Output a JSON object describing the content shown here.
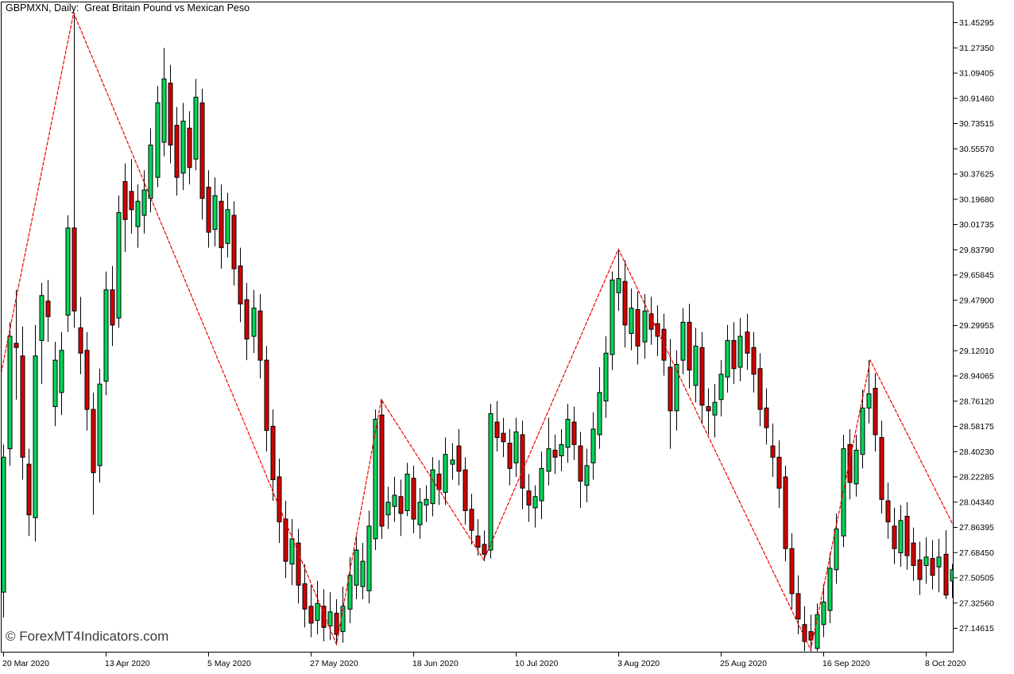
{
  "chart": {
    "title": "GBPMXN, Daily:  Great Britain Pound vs Mexican Peso",
    "watermark": "© ForexMT4Indicators.com",
    "colors": {
      "background": "#FFFFFF",
      "border": "#000000",
      "text": "#000000",
      "watermark_text": "#3A3A3A",
      "candle_up": "#00D75A",
      "candle_down": "#D40000",
      "candle_outline": "#000000",
      "wick": "#000000",
      "zigzag": "#EE0000"
    }
  },
  "chart_data": {
    "type": "candlestick",
    "symbol": "GBPMXN",
    "timeframe": "Daily",
    "title": "GBPMXN, Daily:  Great Britain Pound vs Mexican Peso",
    "indicator": "ZigZag (red line connecting swing highs and lows)",
    "y_axis": {
      "top_label_price": 31.45295,
      "label_step": 0.17945,
      "labels": [
        "31.45295",
        "31.27350",
        "31.09405",
        "30.91460",
        "30.73515",
        "30.55570",
        "30.37625",
        "30.19680",
        "30.01735",
        "29.83790",
        "29.65845",
        "29.47900",
        "29.29955",
        "29.12010",
        "28.94065",
        "28.76120",
        "28.58175",
        "28.40230",
        "28.22285",
        "28.04340",
        "27.86395",
        "27.68450",
        "27.50505",
        "27.32560",
        "27.14615"
      ]
    },
    "x_axis": {
      "labels": [
        "20 Mar 2020",
        "13 Apr 2020",
        "5 May 2020",
        "27 May 2020",
        "18 Jun 2020",
        "10 Jul 2020",
        "3 Aug 2020",
        "25 Aug 2020",
        "16 Sep 2020",
        "8 Oct 2020"
      ],
      "tick_bar_indices": [
        0,
        16,
        32,
        48,
        64,
        80,
        96,
        112,
        128,
        144
      ]
    },
    "zigzag_pivots": [
      [
        -0.5,
        28.92
      ],
      [
        11,
        31.52
      ],
      [
        52,
        27.03
      ],
      [
        59,
        28.77
      ],
      [
        75,
        27.63
      ],
      [
        96,
        29.84
      ],
      [
        126,
        26.99
      ],
      [
        135.3,
        29.05
      ],
      [
        148.3,
        27.87
      ]
    ],
    "candles_format": [
      "open",
      "high",
      "low",
      "close"
    ],
    "candles": [
      [
        27.4,
        28.45,
        27.22,
        28.36
      ],
      [
        28.42,
        29.32,
        28.3,
        29.22
      ],
      [
        29.17,
        29.55,
        28.77,
        29.14
      ],
      [
        29.08,
        29.29,
        28.2,
        28.36
      ],
      [
        28.31,
        28.42,
        27.8,
        27.95
      ],
      [
        27.93,
        29.3,
        27.76,
        29.08
      ],
      [
        29.19,
        29.6,
        28.88,
        29.51
      ],
      [
        29.47,
        29.62,
        29.18,
        29.36
      ],
      [
        28.72,
        29.18,
        28.58,
        29.05
      ],
      [
        28.82,
        29.25,
        28.66,
        29.12
      ],
      [
        29.37,
        30.08,
        29.25,
        29.99
      ],
      [
        29.99,
        31.52,
        29.28,
        29.4
      ],
      [
        29.28,
        29.5,
        28.95,
        29.1
      ],
      [
        29.12,
        29.25,
        28.55,
        28.7
      ],
      [
        28.7,
        28.82,
        27.95,
        28.25
      ],
      [
        28.3,
        28.99,
        28.18,
        28.88
      ],
      [
        28.9,
        29.68,
        28.8,
        29.55
      ],
      [
        29.55,
        29.72,
        29.15,
        29.3
      ],
      [
        29.35,
        30.22,
        29.28,
        30.1
      ],
      [
        30.32,
        30.45,
        29.82,
        30.05
      ],
      [
        30.25,
        30.48,
        29.95,
        30.12
      ],
      [
        30.0,
        30.3,
        29.85,
        30.18
      ],
      [
        30.08,
        30.4,
        29.95,
        30.26
      ],
      [
        30.2,
        30.7,
        30.1,
        30.58
      ],
      [
        30.35,
        31.0,
        30.28,
        30.88
      ],
      [
        30.6,
        31.27,
        30.5,
        31.05
      ],
      [
        31.02,
        31.15,
        30.45,
        30.58
      ],
      [
        30.72,
        30.85,
        30.22,
        30.35
      ],
      [
        30.38,
        30.88,
        30.26,
        30.75
      ],
      [
        30.7,
        30.82,
        30.3,
        30.42
      ],
      [
        30.48,
        31.05,
        30.4,
        30.92
      ],
      [
        30.88,
        30.98,
        30.05,
        30.2
      ],
      [
        30.28,
        30.4,
        29.85,
        29.96
      ],
      [
        29.98,
        30.35,
        29.86,
        30.22
      ],
      [
        30.18,
        30.3,
        29.7,
        29.85
      ],
      [
        29.88,
        30.24,
        29.78,
        30.12
      ],
      [
        30.08,
        30.18,
        29.58,
        29.7
      ],
      [
        29.72,
        29.85,
        29.32,
        29.45
      ],
      [
        29.48,
        29.6,
        29.05,
        29.2
      ],
      [
        29.22,
        29.55,
        29.1,
        29.42
      ],
      [
        29.4,
        29.52,
        28.92,
        29.05
      ],
      [
        29.05,
        29.15,
        28.4,
        28.55
      ],
      [
        28.58,
        28.7,
        28.05,
        28.2
      ],
      [
        28.22,
        28.35,
        27.75,
        27.9
      ],
      [
        27.92,
        28.05,
        27.5,
        27.62
      ],
      [
        27.6,
        27.92,
        27.45,
        27.78
      ],
      [
        27.75,
        27.85,
        27.32,
        27.45
      ],
      [
        27.46,
        27.6,
        27.15,
        27.28
      ],
      [
        27.3,
        27.45,
        27.08,
        27.18
      ],
      [
        27.2,
        27.48,
        27.1,
        27.32
      ],
      [
        27.3,
        27.42,
        27.05,
        27.15
      ],
      [
        27.16,
        27.4,
        27.06,
        27.26
      ],
      [
        27.25,
        27.35,
        27.03,
        27.1
      ],
      [
        27.12,
        27.44,
        27.04,
        27.3
      ],
      [
        27.28,
        27.65,
        27.18,
        27.52
      ],
      [
        27.45,
        27.8,
        27.35,
        27.7
      ],
      [
        27.44,
        27.75,
        27.35,
        27.62
      ],
      [
        27.41,
        27.98,
        27.32,
        27.87
      ],
      [
        27.78,
        28.7,
        27.7,
        28.63
      ],
      [
        28.66,
        28.77,
        27.78,
        27.87
      ],
      [
        27.95,
        28.15,
        27.85,
        28.04
      ],
      [
        28.01,
        28.22,
        27.9,
        28.09
      ],
      [
        28.08,
        28.2,
        27.8,
        27.96
      ],
      [
        27.98,
        28.32,
        27.94,
        28.24
      ],
      [
        28.21,
        28.3,
        27.82,
        27.92
      ],
      [
        27.88,
        28.14,
        27.78,
        28.04
      ],
      [
        28.02,
        28.16,
        27.9,
        28.06
      ],
      [
        28.03,
        28.36,
        27.94,
        28.27
      ],
      [
        28.24,
        28.34,
        28.02,
        28.13
      ],
      [
        28.11,
        28.5,
        28.02,
        28.38
      ],
      [
        28.31,
        28.46,
        28.2,
        28.34
      ],
      [
        28.44,
        28.56,
        28.16,
        28.26
      ],
      [
        28.27,
        28.36,
        27.88,
        27.98
      ],
      [
        27.99,
        28.1,
        27.74,
        27.84
      ],
      [
        27.8,
        27.92,
        27.66,
        27.72
      ],
      [
        27.74,
        27.84,
        27.62,
        27.67
      ],
      [
        27.7,
        28.74,
        27.64,
        28.67
      ],
      [
        28.61,
        28.76,
        28.4,
        28.5
      ],
      [
        28.53,
        28.64,
        28.36,
        28.47
      ],
      [
        28.46,
        28.56,
        28.16,
        28.28
      ],
      [
        28.32,
        28.64,
        28.22,
        28.54
      ],
      [
        28.52,
        28.62,
        27.99,
        28.14
      ],
      [
        28.12,
        28.24,
        27.9,
        28.02
      ],
      [
        28.0,
        28.16,
        27.86,
        28.08
      ],
      [
        28.05,
        28.4,
        27.92,
        28.28
      ],
      [
        28.26,
        28.64,
        28.16,
        28.42
      ],
      [
        28.41,
        28.52,
        28.24,
        28.36
      ],
      [
        28.37,
        28.56,
        28.26,
        28.45
      ],
      [
        28.43,
        28.74,
        28.32,
        28.63
      ],
      [
        28.61,
        28.72,
        28.34,
        28.45
      ],
      [
        28.44,
        28.54,
        28.0,
        28.19
      ],
      [
        28.16,
        28.42,
        28.04,
        28.3
      ],
      [
        28.32,
        28.68,
        28.2,
        28.56
      ],
      [
        28.52,
        29.0,
        28.42,
        28.82
      ],
      [
        28.76,
        29.22,
        28.64,
        29.1
      ],
      [
        29.09,
        29.68,
        28.98,
        29.62
      ],
      [
        29.53,
        29.84,
        29.4,
        29.63
      ],
      [
        29.61,
        29.76,
        29.14,
        29.3
      ],
      [
        29.24,
        29.56,
        29.12,
        29.42
      ],
      [
        29.41,
        29.54,
        29.02,
        29.15
      ],
      [
        29.18,
        29.52,
        29.06,
        29.4
      ],
      [
        29.38,
        29.5,
        29.16,
        29.27
      ],
      [
        29.31,
        29.44,
        29.08,
        29.22
      ],
      [
        29.27,
        29.38,
        28.94,
        29.05
      ],
      [
        29.0,
        29.2,
        28.42,
        28.69
      ],
      [
        28.69,
        29.12,
        28.55,
        29.02
      ],
      [
        29.05,
        29.42,
        28.95,
        29.32
      ],
      [
        29.32,
        29.45,
        28.85,
        28.98
      ],
      [
        28.87,
        29.28,
        28.75,
        29.15
      ],
      [
        29.14,
        29.25,
        28.6,
        28.73
      ],
      [
        28.72,
        28.85,
        28.52,
        28.69
      ],
      [
        28.66,
        28.88,
        28.5,
        28.75
      ],
      [
        28.77,
        29.05,
        28.65,
        28.95
      ],
      [
        28.93,
        29.3,
        28.82,
        29.19
      ],
      [
        29.19,
        29.32,
        28.88,
        28.99
      ],
      [
        29.0,
        29.35,
        28.9,
        29.22
      ],
      [
        29.25,
        29.38,
        28.98,
        29.1
      ],
      [
        29.14,
        29.25,
        28.82,
        28.95
      ],
      [
        28.99,
        29.1,
        28.58,
        28.7
      ],
      [
        28.71,
        28.85,
        28.45,
        28.57
      ],
      [
        28.44,
        28.6,
        28.22,
        28.36
      ],
      [
        28.36,
        28.48,
        28.0,
        28.14
      ],
      [
        28.22,
        28.3,
        27.62,
        27.71
      ],
      [
        27.71,
        27.82,
        27.28,
        27.39
      ],
      [
        27.39,
        27.52,
        27.1,
        27.21
      ],
      [
        27.17,
        27.3,
        26.98,
        27.05
      ],
      [
        27.12,
        27.24,
        26.97,
        27.06
      ],
      [
        27.0,
        27.32,
        26.98,
        27.24
      ],
      [
        27.17,
        27.46,
        27.08,
        27.33
      ],
      [
        27.27,
        27.68,
        27.18,
        27.57
      ],
      [
        27.56,
        27.96,
        27.46,
        27.85
      ],
      [
        27.8,
        28.52,
        27.72,
        28.42
      ],
      [
        28.45,
        28.56,
        28.06,
        28.18
      ],
      [
        28.17,
        28.52,
        28.08,
        28.41
      ],
      [
        28.38,
        28.84,
        28.28,
        28.71
      ],
      [
        28.71,
        29.05,
        28.6,
        28.81
      ],
      [
        28.85,
        28.96,
        28.4,
        28.52
      ],
      [
        28.5,
        28.62,
        27.96,
        28.06
      ],
      [
        28.05,
        28.18,
        27.78,
        27.9
      ],
      [
        27.87,
        28.0,
        27.6,
        27.71
      ],
      [
        27.68,
        28.02,
        27.58,
        27.91
      ],
      [
        27.94,
        28.04,
        27.56,
        27.66
      ],
      [
        27.75,
        27.86,
        27.48,
        27.59
      ],
      [
        27.63,
        27.76,
        27.38,
        27.49
      ],
      [
        27.59,
        27.79,
        27.46,
        27.65
      ],
      [
        27.64,
        27.77,
        27.42,
        27.52
      ],
      [
        27.58,
        27.78,
        27.4,
        27.65
      ],
      [
        27.67,
        27.84,
        27.35,
        27.38
      ],
      [
        27.48,
        27.6,
        27.36,
        27.56
      ],
      [
        27.4,
        27.62,
        27.34,
        27.52
      ]
    ]
  }
}
